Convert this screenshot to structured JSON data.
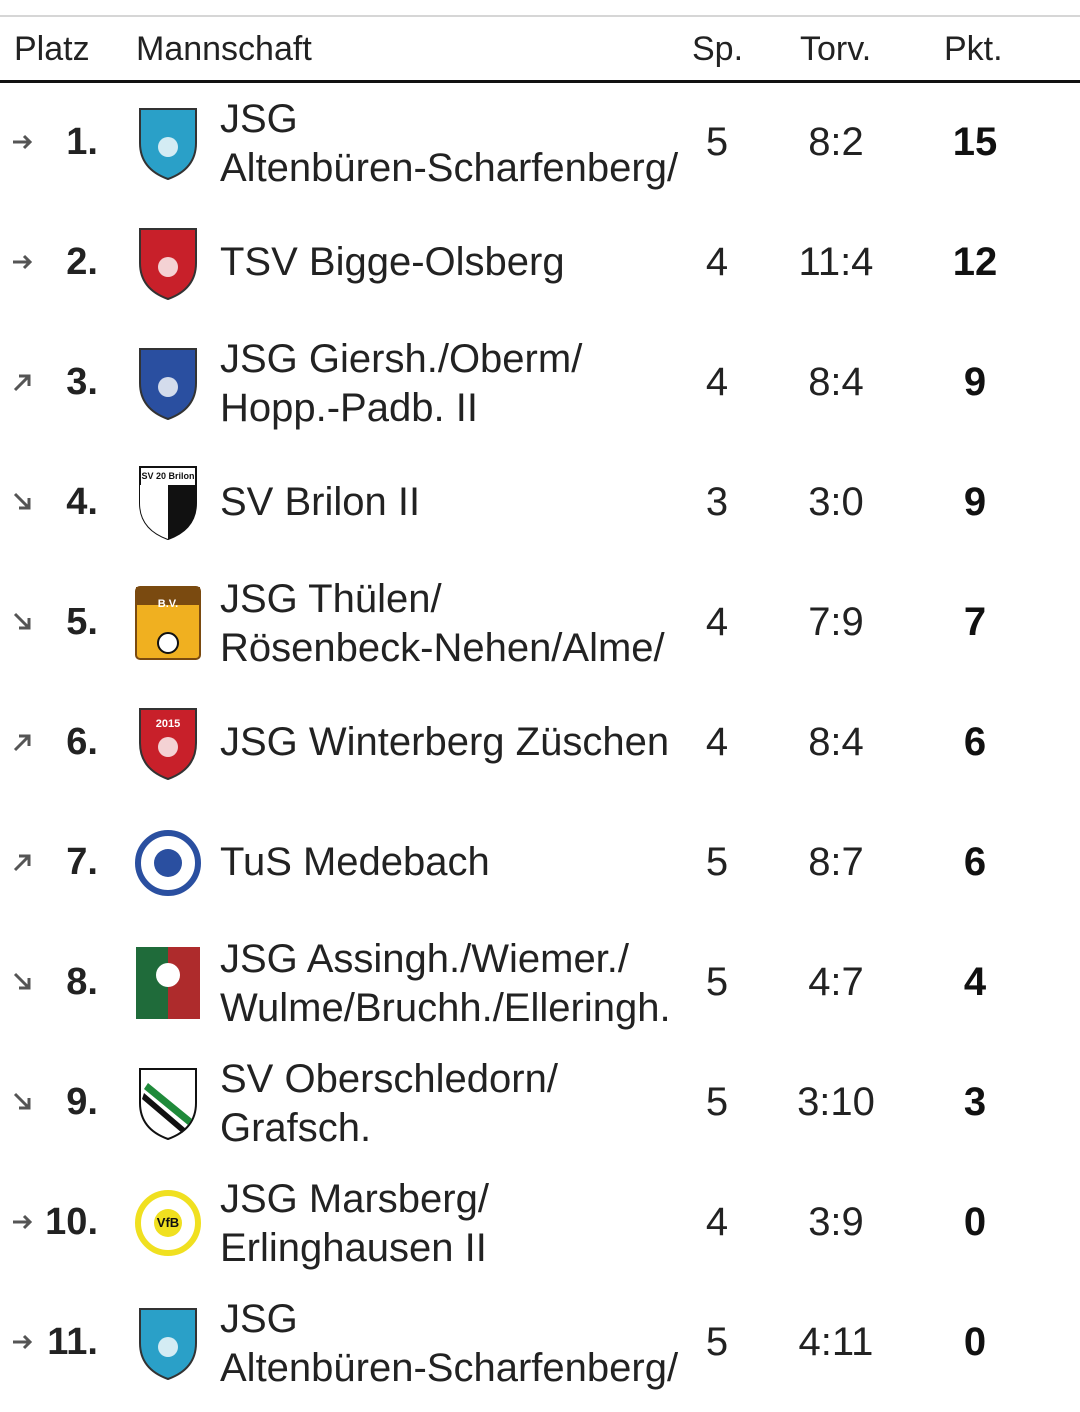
{
  "header": {
    "platz": "Platz",
    "mannschaft": "Mannschaft",
    "sp": "Sp.",
    "torv": "Torv.",
    "pkt": "Pkt."
  },
  "rows": [
    {
      "rank": "1.",
      "trend": "right",
      "line1": "JSG",
      "line2": "Altenbüren-Scharfenberg/",
      "sp": "5",
      "torv": "8:2",
      "pkt": "15",
      "logo": "altenbueren-crest-icon",
      "logo_color": "#2aa0c8"
    },
    {
      "rank": "2.",
      "trend": "right",
      "line1": "TSV Bigge-Olsberg",
      "line2": "",
      "sp": "4",
      "torv": "11:4",
      "pkt": "12",
      "logo": "tsv-bigge-crest-icon",
      "logo_color": "#c8202a"
    },
    {
      "rank": "3.",
      "trend": "up",
      "line1": "JSG Giersh./Oberm/",
      "line2": "Hopp.-Padb. II",
      "sp": "4",
      "torv": "8:4",
      "pkt": "9",
      "logo": "vfl-diershagen-crest-icon",
      "logo_color": "#2a4fa0"
    },
    {
      "rank": "4.",
      "trend": "down",
      "line1": "SV Brilon II",
      "line2": "",
      "sp": "3",
      "torv": "3:0",
      "pkt": "9",
      "logo": "sv-brilon-crest-icon",
      "logo_color": "#111111",
      "logo_text": "SV 20 Brilon"
    },
    {
      "rank": "5.",
      "trend": "down",
      "line1": "JSG Thülen/",
      "line2": "Rösenbeck-Nehen/Alme/",
      "sp": "4",
      "torv": "7:9",
      "pkt": "7",
      "logo": "bv-alme-crest-icon",
      "logo_color": "#f0b020",
      "logo_text": "B.V."
    },
    {
      "rank": "6.",
      "trend": "up",
      "line1": "JSG Winterberg Züschen",
      "line2": "",
      "sp": "4",
      "torv": "8:4",
      "pkt": "6",
      "logo": "jsg-winterberg-crest-icon",
      "logo_color": "#c8202a",
      "logo_text": "2015"
    },
    {
      "rank": "7.",
      "trend": "up",
      "line1": "TuS Medebach",
      "line2": "",
      "sp": "5",
      "torv": "8:7",
      "pkt": "6",
      "logo": "tus-medebach-crest-icon",
      "logo_color": "#2a4fa0"
    },
    {
      "rank": "8.",
      "trend": "down",
      "line1": "JSG Assingh./Wiemer./",
      "line2": "Wulme/Bruchh./Elleringh.",
      "sp": "5",
      "torv": "4:7",
      "pkt": "4",
      "logo": "fc-assinghausen-crest-icon",
      "logo_color": "#1f6b3a"
    },
    {
      "rank": "9.",
      "trend": "down",
      "line1": "SV Oberschledorn/",
      "line2": "Grafsch.",
      "sp": "5",
      "torv": "3:10",
      "pkt": "3",
      "logo": "sv-oberschledorn-crest-icon",
      "logo_color": "#1f8a3a"
    },
    {
      "rank": "10.",
      "trend": "right",
      "line1": "JSG Marsberg/",
      "line2": "Erlinghausen II",
      "sp": "4",
      "torv": "3:9",
      "pkt": "0",
      "logo": "vfb-marsberg-crest-icon",
      "logo_color": "#f0e020",
      "logo_text": "VfB"
    },
    {
      "rank": "11.",
      "trend": "right",
      "line1": "JSG",
      "line2": "Altenbüren-Scharfenberg/",
      "sp": "5",
      "torv": "4:11",
      "pkt": "0",
      "logo": "altenbueren-crest-icon",
      "logo_color": "#2aa0c8"
    }
  ]
}
